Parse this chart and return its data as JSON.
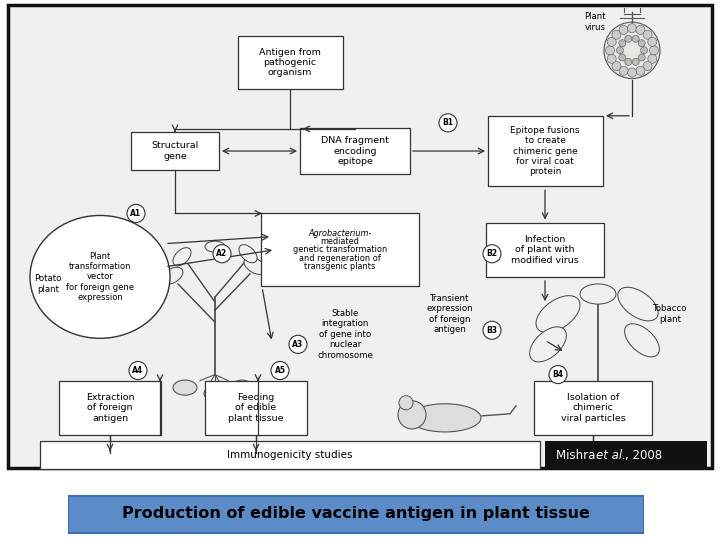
{
  "bg_color": "#ffffff",
  "diagram_bg": "#e8e8e8",
  "diagram_border": "#111111",
  "box_edge": "#333333",
  "box_face": "#ffffff",
  "arrow_color": "#333333",
  "title_text": "Production of edible vaccine antigen in plant tissue",
  "title_bg": "#5b8cc8",
  "title_fg": "#000000",
  "citation_bg": "#111111",
  "citation_fg": "#ffffff",
  "citation_normal": "Mishra ",
  "citation_italic": "et al.",
  "citation_rest": ", 2008",
  "font_size_box": 6.8,
  "font_size_small": 6.0,
  "font_size_label": 6.2,
  "font_size_imm": 7.5,
  "font_size_title": 11.5,
  "font_size_cit": 9.0
}
